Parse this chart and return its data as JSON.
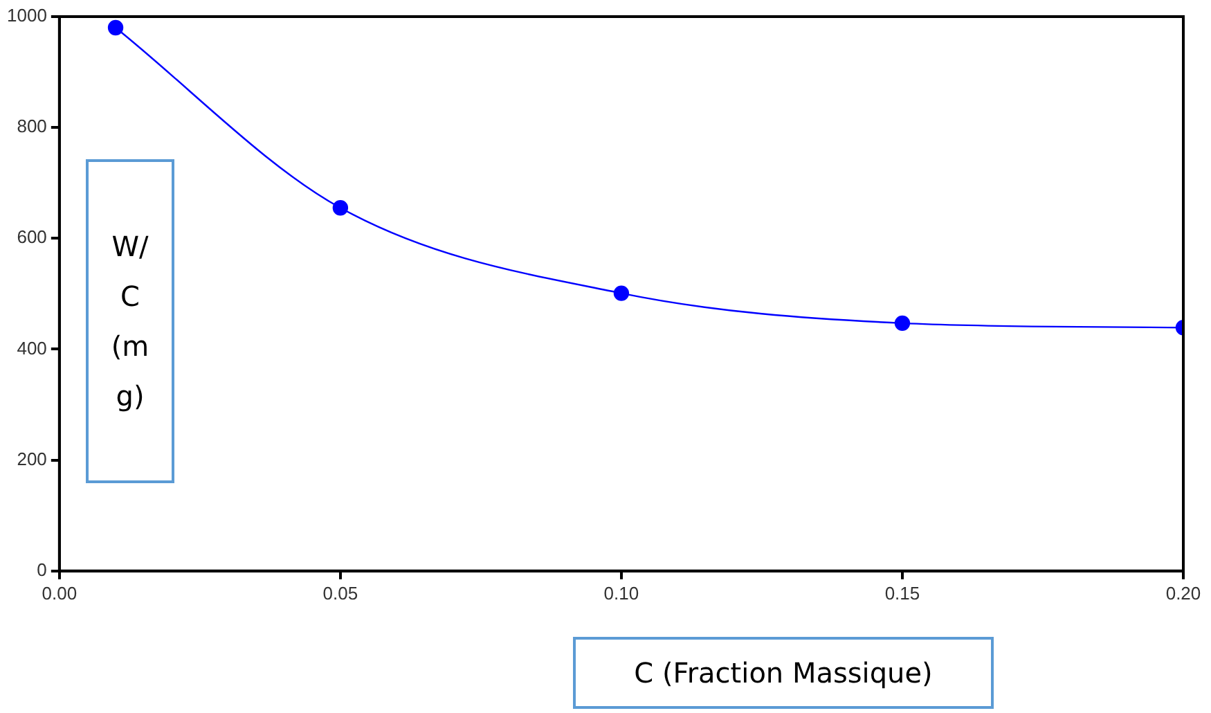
{
  "chart_data": {
    "type": "line",
    "xlabel": "C (Fraction Massique)",
    "ylabel": "W/C (mg)",
    "x": [
      0.01,
      0.05,
      0.1,
      0.15,
      0.2
    ],
    "series": [
      {
        "color": "#0000ff",
        "values": [
          980,
          655,
          501,
          447,
          439
        ]
      }
    ],
    "xlim": [
      0,
      0.2
    ],
    "xticks": [
      {
        "value": 0,
        "label": "0.00"
      },
      {
        "value": 0.05,
        "label": "0.05"
      },
      {
        "value": 0.1,
        "label": "0.10"
      },
      {
        "value": 0.15,
        "label": "0.15"
      },
      {
        "value": 0.2,
        "label": "0.20"
      }
    ],
    "ylim": [
      0,
      1000
    ],
    "yticks": [
      0,
      200,
      400,
      600,
      800,
      1000
    ],
    "grid": false,
    "legend": false,
    "marker": "circle",
    "line_style": "solid"
  }
}
